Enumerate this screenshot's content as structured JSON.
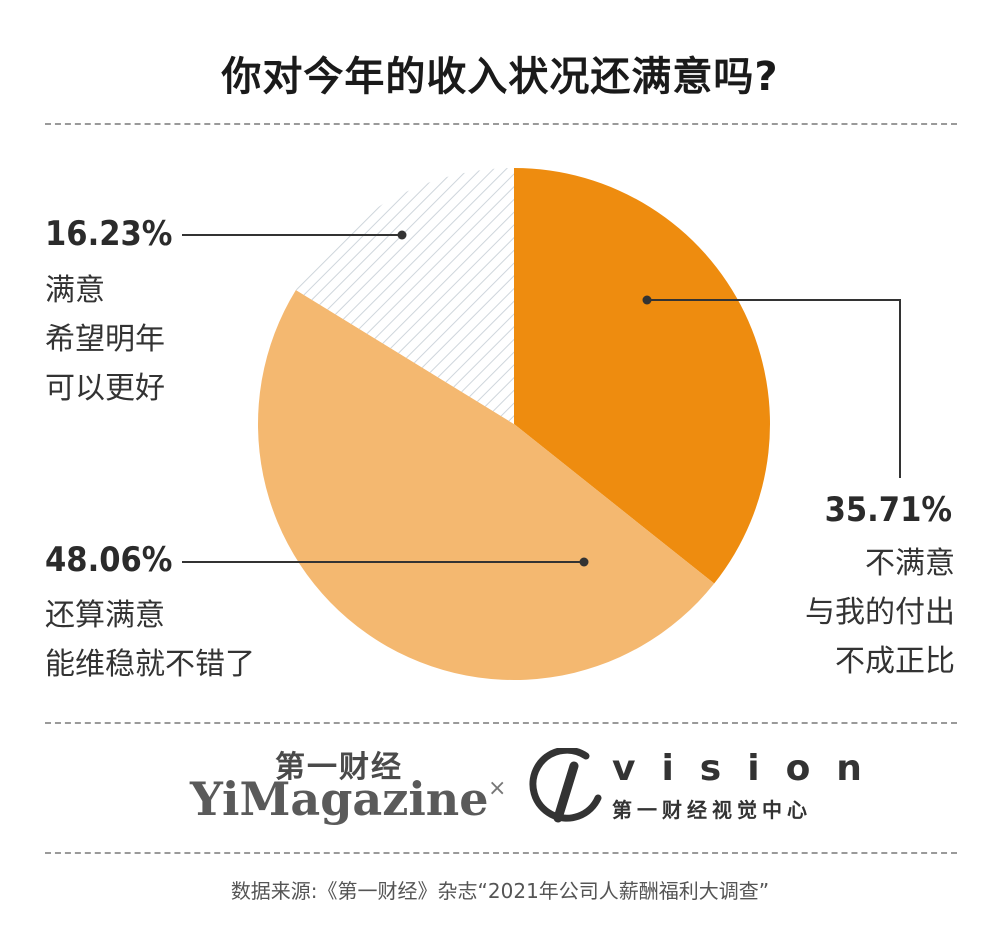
{
  "title": "你对今年的收入状况还满意吗?",
  "chart_data": {
    "type": "pie",
    "slices": [
      {
        "label": "不满意\n与我的付出\n不成正比",
        "value": 35.71,
        "value_label": "35.71%",
        "color": "#ee8c0f"
      },
      {
        "label": "还算满意\n能维稳就不错了",
        "value": 48.06,
        "value_label": "48.06%",
        "color": "#f4b870"
      },
      {
        "label": "满意\n希望明年\n可以更好",
        "value": 16.23,
        "value_label": "16.23%",
        "color": "#ffffff",
        "pattern": "diagonal-hatch",
        "hatch_color": "#d0d7dd"
      }
    ]
  },
  "logos": {
    "yimagazine_cn": "第一财经",
    "yimagazine_en": "YiMagazine",
    "separator": "×",
    "vision_word": "vision",
    "vision_cn": "第一财经视觉中心"
  },
  "source": "数据来源:《第一财经》杂志“2021年公司人薪酬福利大调查”"
}
